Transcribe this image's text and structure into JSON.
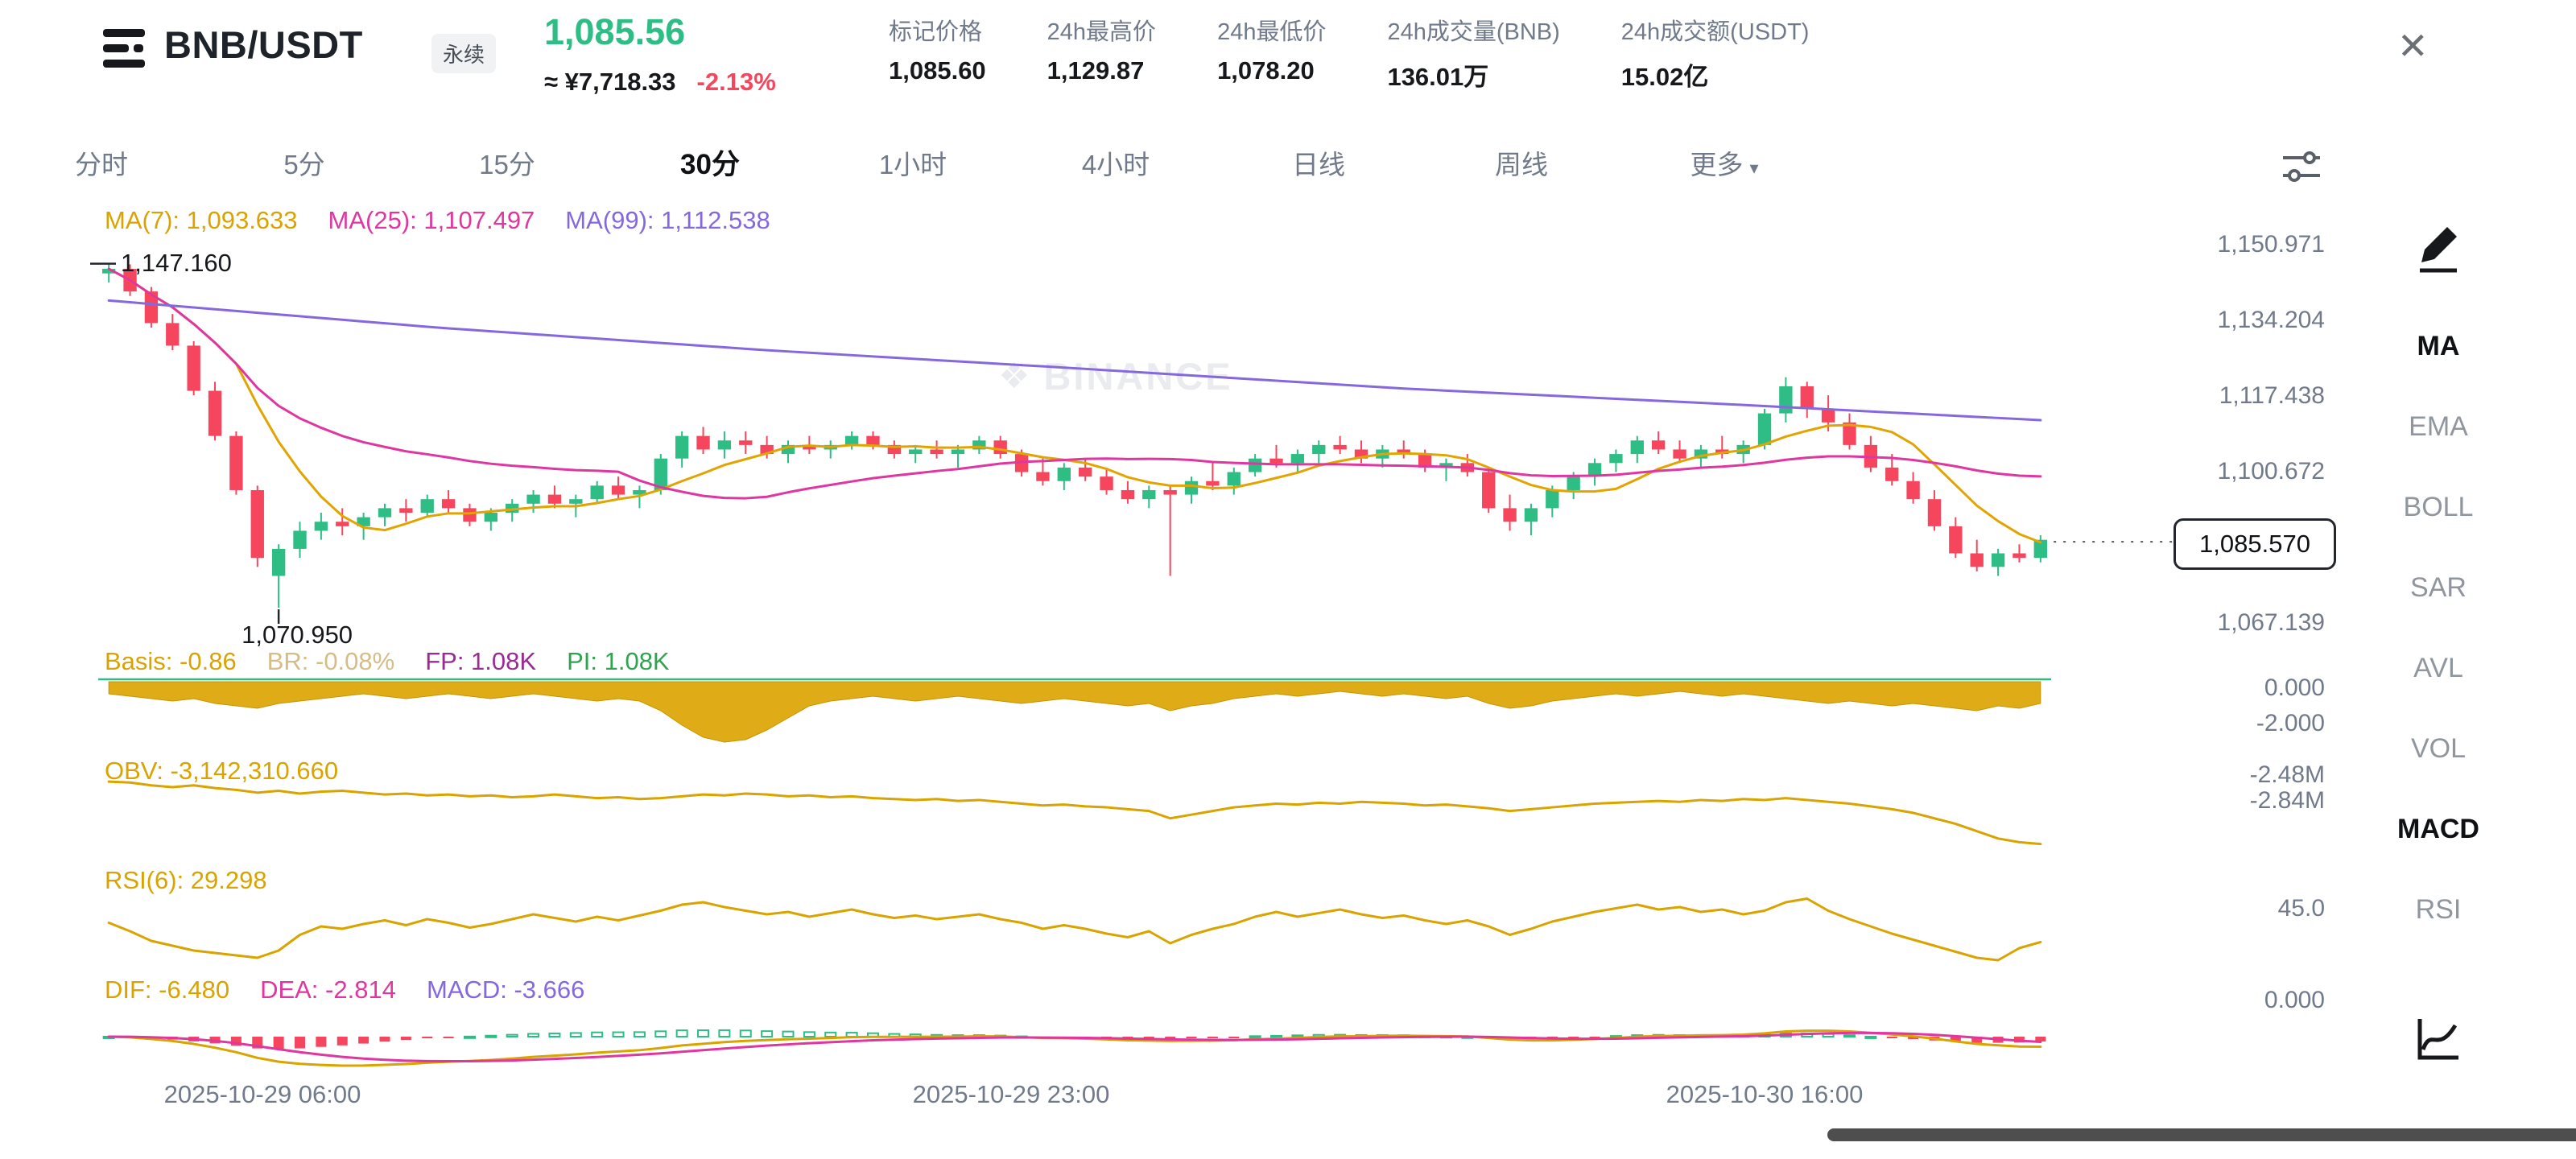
{
  "header": {
    "symbol": "BNB/USDT",
    "contract_badge": "永续",
    "last_price": "1,085.56",
    "cny_price": "≈ ¥7,718.33",
    "change_pct": "-2.13%",
    "stats": [
      {
        "label": "标记价格",
        "value": "1,085.60"
      },
      {
        "label": "24h最高价",
        "value": "1,129.87"
      },
      {
        "label": "24h最低价",
        "value": "1,078.20"
      },
      {
        "label": "24h成交量(BNB)",
        "value": "136.01万"
      },
      {
        "label": "24h成交额(USDT)",
        "value": "15.02亿"
      }
    ],
    "close_icon": "✕"
  },
  "tabs": {
    "items": [
      "分时",
      "5分",
      "15分",
      "30分",
      "1小时",
      "4小时",
      "日线",
      "周线"
    ],
    "active": "30分",
    "more_label": "更多",
    "caret": "▾"
  },
  "indicators": {
    "ma": [
      {
        "text": "MA(7): 1,093.633"
      },
      {
        "text": "MA(25): 1,107.497"
      },
      {
        "text": "MA(99): 1,112.538"
      }
    ]
  },
  "main_chart": {
    "high_label": "1,147.160",
    "low_label": "1,070.950",
    "current_price": "1,085.570",
    "price_axis": [
      "1,150.971",
      "1,134.204",
      "1,117.438",
      "1,100.672",
      "1,067.139"
    ]
  },
  "watermark": {
    "diamond": "❖",
    "text": "BINANCE"
  },
  "panels": {
    "basis": {
      "labels": [
        "Basis: -0.86",
        "BR: -0.08%",
        "FP: 1.08K",
        "PI: 1.08K"
      ],
      "axis": [
        "0.000",
        "-2.000"
      ]
    },
    "obv": {
      "label": "OBV: -3,142,310.660",
      "axis": [
        "-2.48M",
        "-2.84M"
      ]
    },
    "rsi": {
      "label": "RSI(6): 29.298",
      "axis": [
        "45.0"
      ]
    },
    "macd": {
      "labels": [
        "DIF: -6.480",
        "DEA: -2.814",
        "MACD: -3.666"
      ],
      "axis": [
        "0.000"
      ]
    }
  },
  "xaxis": [
    "2025-10-29 06:00",
    "2025-10-29 23:00",
    "2025-10-30 16:00"
  ],
  "sidebar": {
    "items": [
      "MA",
      "EMA",
      "BOLL",
      "SAR",
      "AVL",
      "VOL",
      "MACD",
      "RSI"
    ],
    "active": [
      "MA",
      "MACD"
    ]
  },
  "chart_data": {
    "type": "candlestick",
    "interval": "30分",
    "colors": {
      "up": "#2EBD85",
      "down": "#F6465D",
      "ma7": "#E2A400",
      "ma25": "#E0369F",
      "ma99": "#8668DE",
      "accent_yellow": "#D9A300",
      "basis_fill": "#DFAC18",
      "basis_line": "#2EBD85"
    },
    "price_high": 1147.16,
    "price_low": 1070.95,
    "candles": [
      [
        1145,
        1147.2,
        1143,
        1146
      ],
      [
        1146,
        1147,
        1140,
        1141
      ],
      [
        1141,
        1142,
        1133,
        1134
      ],
      [
        1134,
        1136,
        1128,
        1129
      ],
      [
        1129,
        1130,
        1118,
        1119
      ],
      [
        1119,
        1121,
        1108,
        1109
      ],
      [
        1109,
        1110,
        1096,
        1097
      ],
      [
        1097,
        1098,
        1080,
        1082
      ],
      [
        1078,
        1085,
        1070.95,
        1084
      ],
      [
        1084,
        1090,
        1082,
        1088
      ],
      [
        1088,
        1092,
        1086,
        1090
      ],
      [
        1090,
        1093,
        1087,
        1089
      ],
      [
        1089,
        1092,
        1086,
        1091
      ],
      [
        1091,
        1094,
        1089,
        1093
      ],
      [
        1093,
        1095,
        1090,
        1092
      ],
      [
        1092,
        1096,
        1091,
        1095
      ],
      [
        1095,
        1097,
        1092,
        1093
      ],
      [
        1093,
        1094,
        1089,
        1090
      ],
      [
        1090,
        1093,
        1088,
        1092
      ],
      [
        1092,
        1095,
        1090,
        1094
      ],
      [
        1094,
        1097,
        1092,
        1096
      ],
      [
        1096,
        1098,
        1093,
        1094
      ],
      [
        1094,
        1096,
        1091,
        1095
      ],
      [
        1095,
        1099,
        1094,
        1098
      ],
      [
        1098,
        1100,
        1095,
        1096
      ],
      [
        1096,
        1098,
        1093,
        1097
      ],
      [
        1097,
        1105,
        1096,
        1104
      ],
      [
        1104,
        1110,
        1102,
        1109
      ],
      [
        1109,
        1111,
        1105,
        1106
      ],
      [
        1106,
        1110,
        1104,
        1108
      ],
      [
        1108,
        1110,
        1105,
        1107
      ],
      [
        1107,
        1109,
        1104,
        1105
      ],
      [
        1105,
        1108,
        1103,
        1107
      ],
      [
        1107,
        1109,
        1105,
        1106
      ],
      [
        1106,
        1108,
        1104,
        1107
      ],
      [
        1107,
        1110,
        1106,
        1109
      ],
      [
        1109,
        1110,
        1106,
        1107
      ],
      [
        1107,
        1108,
        1104,
        1105
      ],
      [
        1105,
        1107,
        1103,
        1106
      ],
      [
        1106,
        1108,
        1104,
        1105
      ],
      [
        1105,
        1107,
        1102,
        1106
      ],
      [
        1106,
        1109,
        1105,
        1108
      ],
      [
        1108,
        1109,
        1104,
        1105
      ],
      [
        1105,
        1106,
        1100,
        1101
      ],
      [
        1101,
        1104,
        1098,
        1099
      ],
      [
        1099,
        1103,
        1097,
        1102
      ],
      [
        1102,
        1104,
        1099,
        1100
      ],
      [
        1100,
        1102,
        1096,
        1097
      ],
      [
        1097,
        1099,
        1094,
        1095
      ],
      [
        1095,
        1098,
        1093,
        1097
      ],
      [
        1097,
        1098,
        1078,
        1096
      ],
      [
        1096,
        1100,
        1094,
        1099
      ],
      [
        1099,
        1103,
        1097,
        1098
      ],
      [
        1098,
        1102,
        1096,
        1101
      ],
      [
        1101,
        1105,
        1100,
        1104
      ],
      [
        1104,
        1107,
        1102,
        1103
      ],
      [
        1103,
        1106,
        1101,
        1105
      ],
      [
        1105,
        1108,
        1103,
        1107
      ],
      [
        1107,
        1109,
        1105,
        1106
      ],
      [
        1106,
        1108,
        1103,
        1104
      ],
      [
        1104,
        1107,
        1102,
        1106
      ],
      [
        1106,
        1108,
        1104,
        1105
      ],
      [
        1105,
        1106,
        1101,
        1102
      ],
      [
        1102,
        1104,
        1099,
        1103
      ],
      [
        1103,
        1105,
        1100,
        1101
      ],
      [
        1101,
        1102,
        1092,
        1093
      ],
      [
        1093,
        1096,
        1088,
        1090
      ],
      [
        1090,
        1094,
        1087,
        1093
      ],
      [
        1093,
        1098,
        1091,
        1097
      ],
      [
        1097,
        1101,
        1095,
        1100
      ],
      [
        1100,
        1104,
        1098,
        1103
      ],
      [
        1103,
        1106,
        1101,
        1105
      ],
      [
        1105,
        1109,
        1103,
        1108
      ],
      [
        1108,
        1110,
        1105,
        1106
      ],
      [
        1106,
        1108,
        1103,
        1104
      ],
      [
        1104,
        1107,
        1102,
        1106
      ],
      [
        1106,
        1109,
        1104,
        1105
      ],
      [
        1105,
        1108,
        1103,
        1107
      ],
      [
        1107,
        1115,
        1106,
        1114
      ],
      [
        1114,
        1122,
        1112,
        1120
      ],
      [
        1120,
        1121,
        1113,
        1115
      ],
      [
        1115,
        1118,
        1110,
        1112
      ],
      [
        1112,
        1114,
        1106,
        1107
      ],
      [
        1107,
        1109,
        1101,
        1102
      ],
      [
        1102,
        1105,
        1098,
        1099
      ],
      [
        1099,
        1101,
        1094,
        1095
      ],
      [
        1095,
        1097,
        1088,
        1089
      ],
      [
        1089,
        1091,
        1082,
        1083
      ],
      [
        1083,
        1086,
        1079,
        1080
      ],
      [
        1080,
        1084,
        1078,
        1083
      ],
      [
        1083,
        1085,
        1081,
        1082
      ],
      [
        1082,
        1087,
        1081,
        1086
      ]
    ],
    "basis": [
      -0.5,
      -0.6,
      -0.7,
      -0.8,
      -0.7,
      -0.9,
      -1.0,
      -1.1,
      -0.9,
      -0.8,
      -0.7,
      -0.6,
      -0.5,
      -0.6,
      -0.7,
      -0.6,
      -0.5,
      -0.6,
      -0.7,
      -0.6,
      -0.5,
      -0.6,
      -0.7,
      -0.8,
      -0.7,
      -0.8,
      -1.2,
      -1.8,
      -2.3,
      -2.5,
      -2.4,
      -2.0,
      -1.5,
      -1.0,
      -0.8,
      -0.7,
      -0.6,
      -0.7,
      -0.8,
      -0.7,
      -0.6,
      -0.7,
      -0.8,
      -0.9,
      -0.8,
      -0.7,
      -0.8,
      -0.9,
      -1.0,
      -0.9,
      -1.2,
      -1.0,
      -0.9,
      -0.7,
      -0.6,
      -0.5,
      -0.6,
      -0.5,
      -0.4,
      -0.5,
      -0.6,
      -0.5,
      -0.6,
      -0.7,
      -0.6,
      -0.9,
      -1.1,
      -1.0,
      -0.8,
      -0.7,
      -0.6,
      -0.5,
      -0.6,
      -0.5,
      -0.4,
      -0.5,
      -0.6,
      -0.5,
      -0.6,
      -0.7,
      -0.8,
      -0.9,
      -0.8,
      -0.9,
      -1.0,
      -0.9,
      -1.0,
      -1.1,
      -1.2,
      -1.0,
      -1.1,
      -0.9
    ],
    "obv_millions": [
      -2.46,
      -2.47,
      -2.5,
      -2.52,
      -2.5,
      -2.53,
      -2.55,
      -2.58,
      -2.56,
      -2.59,
      -2.57,
      -2.56,
      -2.58,
      -2.6,
      -2.59,
      -2.61,
      -2.6,
      -2.62,
      -2.61,
      -2.63,
      -2.62,
      -2.6,
      -2.62,
      -2.64,
      -2.63,
      -2.65,
      -2.64,
      -2.62,
      -2.6,
      -2.61,
      -2.59,
      -2.6,
      -2.62,
      -2.61,
      -2.63,
      -2.62,
      -2.64,
      -2.65,
      -2.66,
      -2.65,
      -2.67,
      -2.66,
      -2.68,
      -2.7,
      -2.72,
      -2.71,
      -2.73,
      -2.74,
      -2.76,
      -2.78,
      -2.86,
      -2.82,
      -2.78,
      -2.74,
      -2.72,
      -2.7,
      -2.71,
      -2.69,
      -2.7,
      -2.68,
      -2.69,
      -2.7,
      -2.72,
      -2.71,
      -2.73,
      -2.75,
      -2.78,
      -2.76,
      -2.74,
      -2.72,
      -2.7,
      -2.69,
      -2.68,
      -2.67,
      -2.68,
      -2.66,
      -2.67,
      -2.65,
      -2.66,
      -2.64,
      -2.66,
      -2.68,
      -2.7,
      -2.73,
      -2.76,
      -2.8,
      -2.86,
      -2.92,
      -3.0,
      -3.08,
      -3.12,
      -3.14
    ],
    "rsi6": [
      45,
      38,
      30,
      26,
      22,
      20,
      18,
      16,
      22,
      35,
      42,
      40,
      44,
      47,
      43,
      48,
      45,
      41,
      44,
      48,
      52,
      49,
      46,
      50,
      47,
      51,
      55,
      60,
      62,
      58,
      55,
      52,
      54,
      50,
      53,
      56,
      52,
      49,
      51,
      48,
      50,
      52,
      48,
      45,
      40,
      43,
      40,
      36,
      33,
      38,
      28,
      35,
      40,
      44,
      50,
      54,
      50,
      53,
      56,
      52,
      49,
      51,
      47,
      44,
      47,
      42,
      35,
      40,
      46,
      50,
      54,
      57,
      60,
      56,
      58,
      54,
      56,
      52,
      55,
      62,
      65,
      55,
      48,
      42,
      36,
      31,
      26,
      21,
      16,
      14,
      24,
      29
    ]
  }
}
